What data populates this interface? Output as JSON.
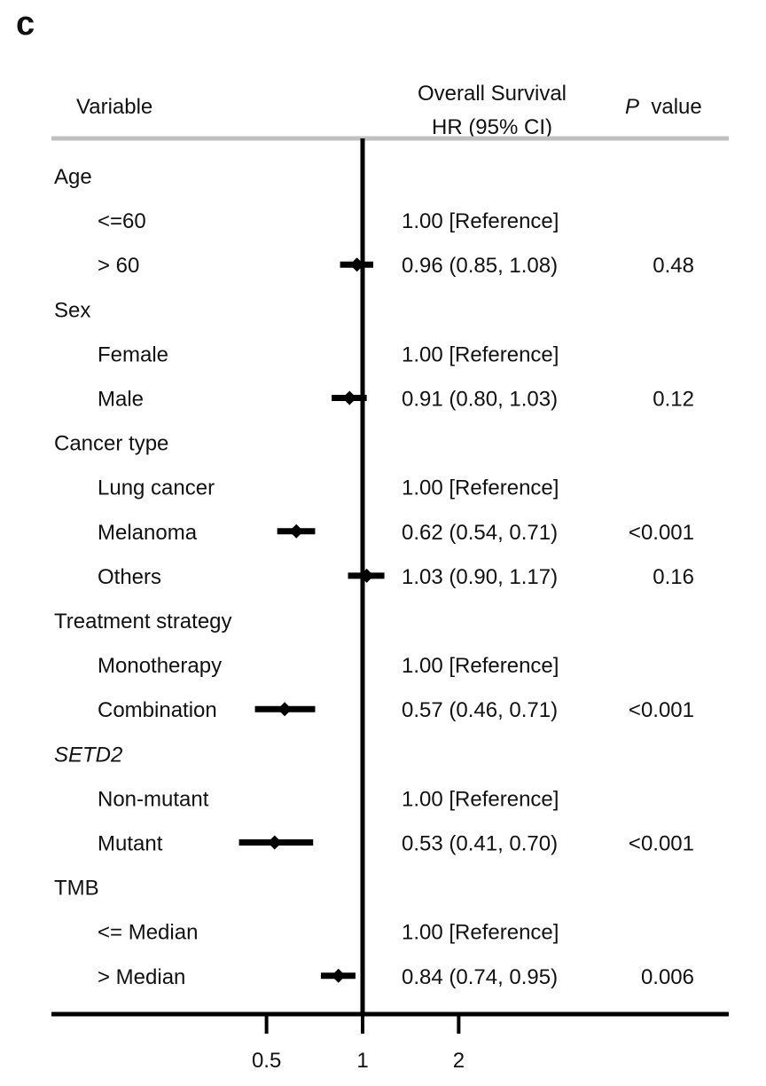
{
  "panel_label": "c",
  "header": {
    "variable": "Variable",
    "hr_line1": "Overall Survival",
    "hr_line2": "HR (95% CI)",
    "p_italic": "P",
    "p_rest": "value"
  },
  "chart_data": {
    "type": "forest",
    "xlabel": "",
    "x_scale": "log",
    "xlim": [
      0.3,
      3.2
    ],
    "x_ticks": [
      0.5,
      1,
      2
    ],
    "x_tick_labels": [
      "0.5",
      "1",
      "2"
    ],
    "reference_line": 1,
    "rows": [
      {
        "label": "Age",
        "kind": "group",
        "italic": false
      },
      {
        "label": "<=60",
        "kind": "level",
        "hr_text": "1.00 [Reference]",
        "p": ""
      },
      {
        "label": "> 60",
        "kind": "level",
        "hr": 0.96,
        "lo": 0.85,
        "hi": 1.08,
        "hr_text": "0.96 (0.85, 1.08)",
        "p": "0.48"
      },
      {
        "label": "Sex",
        "kind": "group",
        "italic": false
      },
      {
        "label": "Female",
        "kind": "level",
        "hr_text": "1.00 [Reference]",
        "p": ""
      },
      {
        "label": "Male",
        "kind": "level",
        "hr": 0.91,
        "lo": 0.8,
        "hi": 1.03,
        "hr_text": "0.91 (0.80, 1.03)",
        "p": "0.12"
      },
      {
        "label": "Cancer type",
        "kind": "group",
        "italic": false
      },
      {
        "label": "Lung cancer",
        "kind": "level",
        "hr_text": "1.00 [Reference]",
        "p": ""
      },
      {
        "label": "Melanoma",
        "kind": "level",
        "hr": 0.62,
        "lo": 0.54,
        "hi": 0.71,
        "hr_text": "0.62 (0.54, 0.71)",
        "p": "<0.001"
      },
      {
        "label": "Others",
        "kind": "level",
        "hr": 1.03,
        "lo": 0.9,
        "hi": 1.17,
        "hr_text": "1.03 (0.90, 1.17)",
        "p": "0.16"
      },
      {
        "label": "Treatment strategy",
        "kind": "group",
        "italic": false
      },
      {
        "label": "Monotherapy",
        "kind": "level",
        "hr_text": "1.00 [Reference]",
        "p": ""
      },
      {
        "label": "Combination",
        "kind": "level",
        "hr": 0.57,
        "lo": 0.46,
        "hi": 0.71,
        "hr_text": "0.57 (0.46, 0.71)",
        "p": "<0.001"
      },
      {
        "label": "SETD2",
        "kind": "group",
        "italic": true
      },
      {
        "label": "Non-mutant",
        "kind": "level",
        "hr_text": "1.00 [Reference]",
        "p": ""
      },
      {
        "label": "Mutant",
        "kind": "level",
        "hr": 0.53,
        "lo": 0.41,
        "hi": 0.7,
        "hr_text": "0.53 (0.41, 0.70)",
        "p": "<0.001"
      },
      {
        "label": "TMB",
        "kind": "group",
        "italic": false
      },
      {
        "label": "<= Median",
        "kind": "level",
        "hr_text": "1.00 [Reference]",
        "p": ""
      },
      {
        "label": "> Median",
        "kind": "level",
        "hr": 0.84,
        "lo": 0.74,
        "hi": 0.95,
        "hr_text": "0.84 (0.74, 0.95)",
        "p": "0.006"
      }
    ]
  }
}
